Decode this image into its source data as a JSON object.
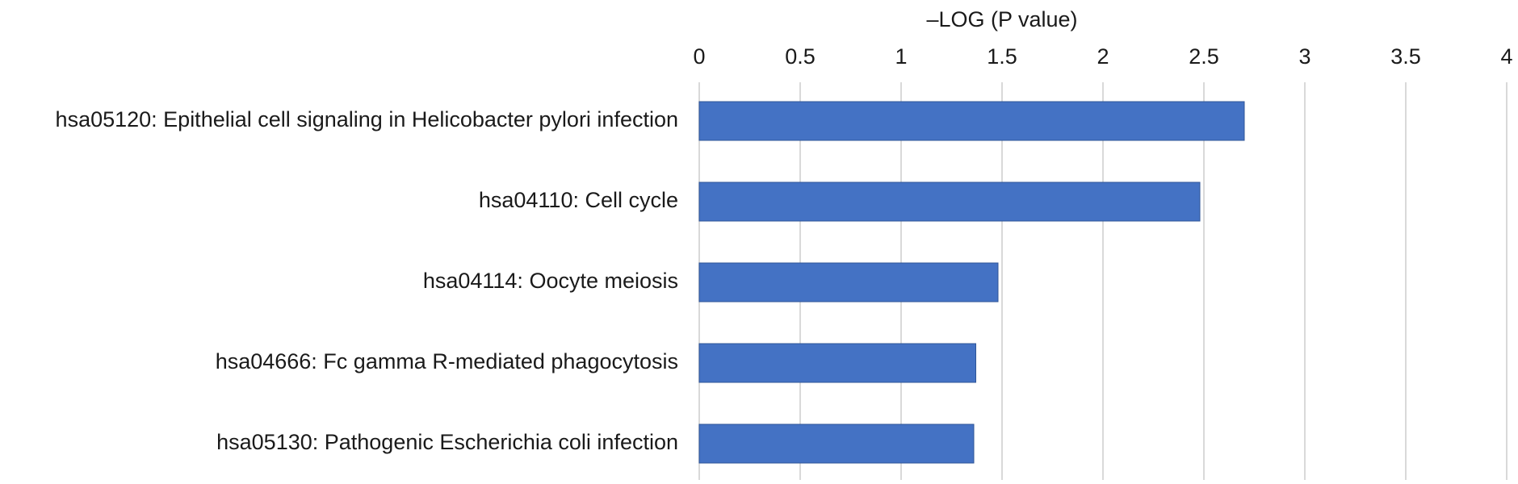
{
  "chart_data": {
    "type": "bar",
    "orientation": "horizontal",
    "title": "–LOG (P value)",
    "xlabel": "",
    "ylabel": "",
    "categories": [
      "hsa05120: Epithelial cell signaling in Helicobacter pylori infection",
      "hsa04110: Cell cycle",
      "hsa04114: Oocyte meiosis",
      "hsa04666: Fc gamma R-mediated phagocytosis",
      "hsa05130: Pathogenic Escherichia coli infection"
    ],
    "values": [
      2.7,
      2.48,
      1.48,
      1.37,
      1.36
    ],
    "xlim": [
      0,
      4
    ],
    "ticks": [
      "0",
      "0.5",
      "1",
      "1.5",
      "2",
      "2.5",
      "3",
      "3.5",
      "4"
    ],
    "tick_values": [
      0,
      0.5,
      1,
      1.5,
      2,
      2.5,
      3,
      3.5,
      4
    ],
    "grid": true,
    "axis_position": "top",
    "legend": "none",
    "bar_color": "#4472C4",
    "bar_edge_color": "#2F5597",
    "grid_color": "#D9D9D9"
  }
}
